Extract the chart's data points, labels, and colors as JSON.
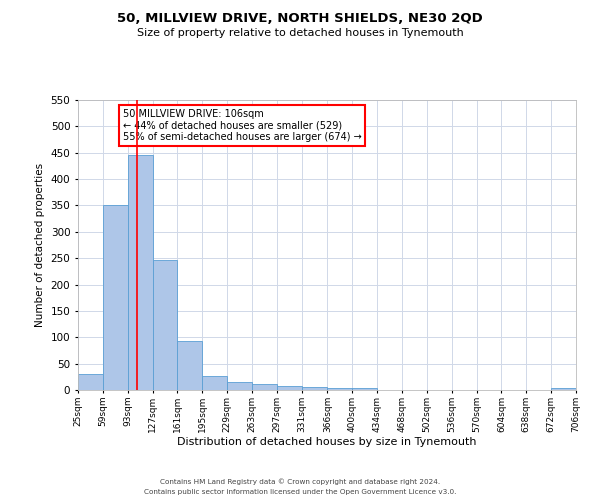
{
  "title": "50, MILLVIEW DRIVE, NORTH SHIELDS, NE30 2QD",
  "subtitle": "Size of property relative to detached houses in Tynemouth",
  "xlabel": "Distribution of detached houses by size in Tynemouth",
  "ylabel": "Number of detached properties",
  "bar_color": "#aec6e8",
  "bar_edge_color": "#5a9fd4",
  "background_color": "#ffffff",
  "grid_color": "#d0d8e8",
  "red_line_x": 106,
  "bin_edges": [
    25,
    59,
    93,
    127,
    161,
    195,
    229,
    263,
    297,
    331,
    366,
    400,
    434,
    468,
    502,
    536,
    570,
    604,
    638,
    672,
    706
  ],
  "bar_heights": [
    30,
    350,
    445,
    247,
    93,
    26,
    15,
    12,
    8,
    5,
    4,
    3,
    0,
    0,
    0,
    0,
    0,
    0,
    0,
    3
  ],
  "tick_labels": [
    "25sqm",
    "59sqm",
    "93sqm",
    "127sqm",
    "161sqm",
    "195sqm",
    "229sqm",
    "263sqm",
    "297sqm",
    "331sqm",
    "366sqm",
    "400sqm",
    "434sqm",
    "468sqm",
    "502sqm",
    "536sqm",
    "570sqm",
    "604sqm",
    "638sqm",
    "672sqm",
    "706sqm"
  ],
  "ylim": [
    0,
    550
  ],
  "yticks": [
    0,
    50,
    100,
    150,
    200,
    250,
    300,
    350,
    400,
    450,
    500,
    550
  ],
  "annotation_box_text_line1": "50 MILLVIEW DRIVE: 106sqm",
  "annotation_box_text_line2": "← 44% of detached houses are smaller (529)",
  "annotation_box_text_line3": "55% of semi-detached houses are larger (674) →",
  "footer_line1": "Contains HM Land Registry data © Crown copyright and database right 2024.",
  "footer_line2": "Contains public sector information licensed under the Open Government Licence v3.0."
}
